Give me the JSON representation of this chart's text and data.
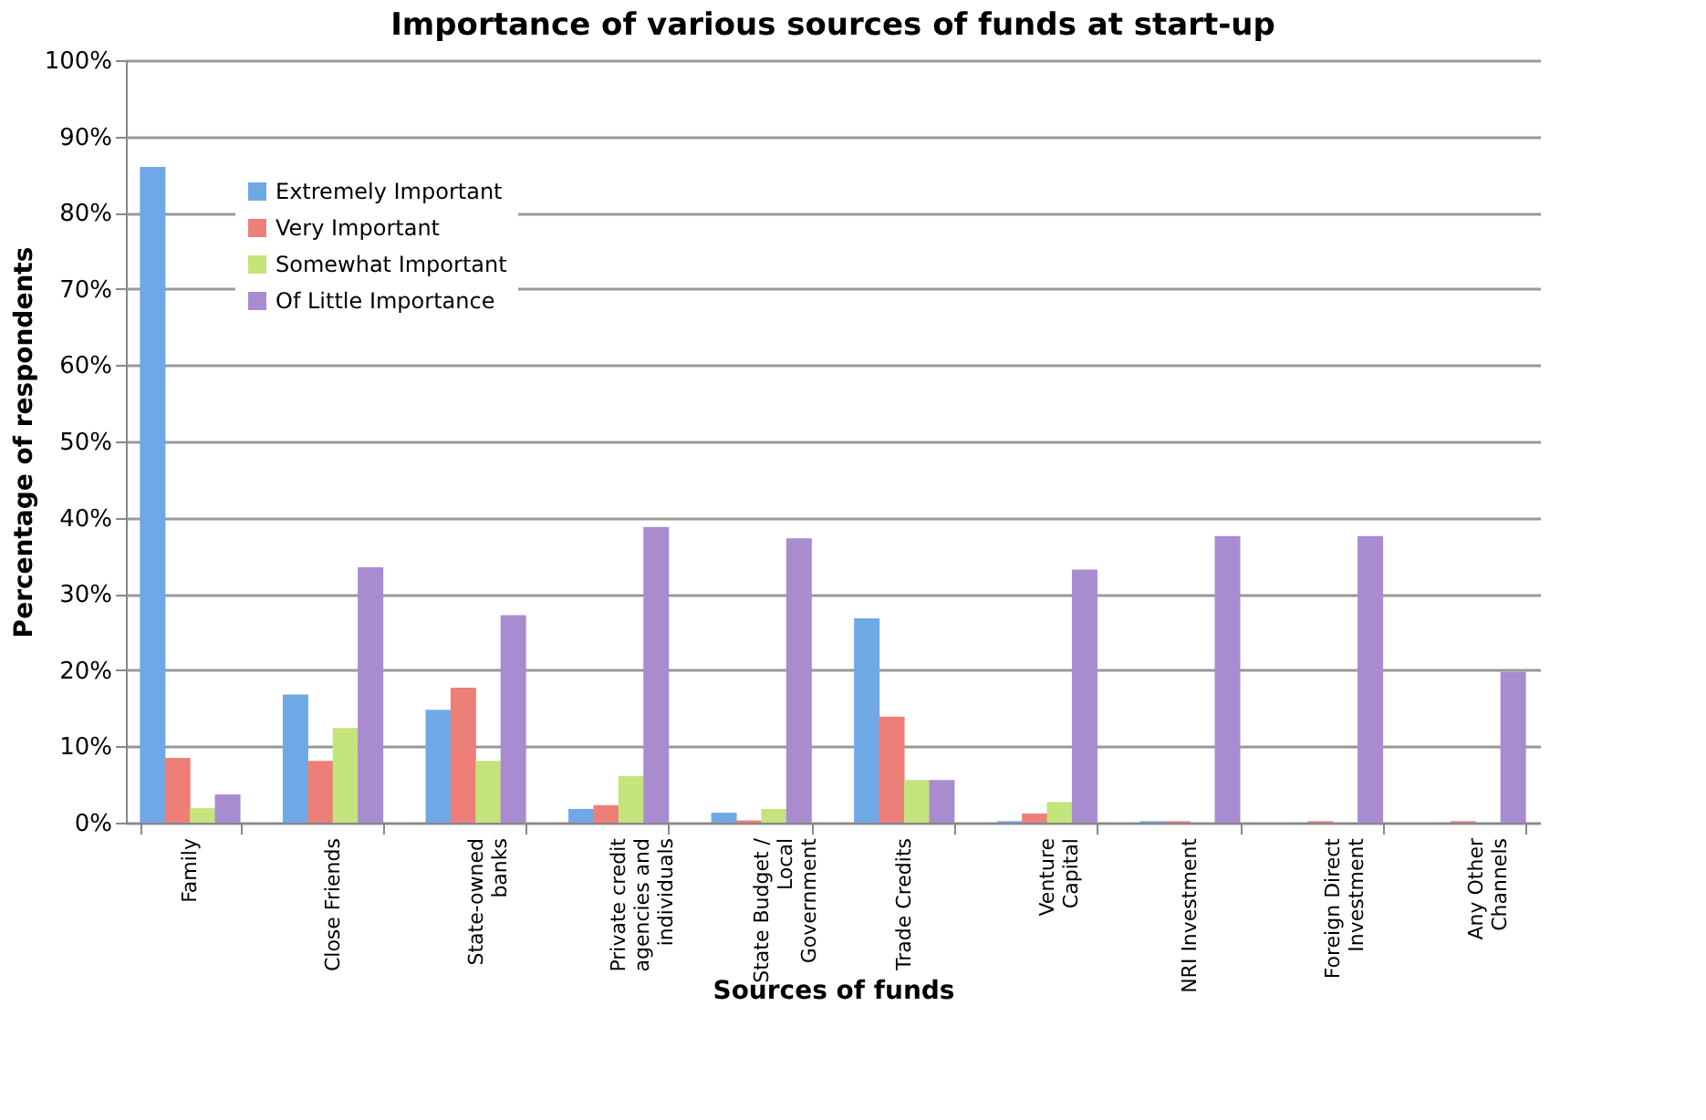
{
  "chart_data": {
    "type": "bar",
    "title": "Importance of various sources of funds at start-up",
    "xlabel": "Sources of funds",
    "ylabel": "Percentage of respondents",
    "categories": [
      "Family",
      "Close Friends",
      "State-owned banks",
      "Private credit agencies and individuals",
      "State Budget / Local Government",
      "Trade Credits",
      "Venture Capital",
      "NRI Investment",
      "Foreign Direct Investment",
      "Any Other Channels"
    ],
    "series": [
      {
        "name": "Extremely Important",
        "color": "#6fa8e6",
        "values": [
          86,
          16.8,
          14.8,
          1.8,
          1.3,
          26.8,
          0.2,
          0.2,
          0,
          0
        ]
      },
      {
        "name": "Very Important",
        "color": "#ee7f78",
        "values": [
          8.5,
          8.1,
          17.7,
          2.3,
          0.3,
          13.9,
          1.2,
          0.2,
          0.2,
          0.2
        ]
      },
      {
        "name": "Somewhat Important",
        "color": "#c4e47c",
        "values": [
          1.9,
          12.4,
          8.1,
          6.1,
          1.8,
          5.6,
          2.7,
          0,
          0,
          0
        ]
      },
      {
        "name": "Of Little Importance",
        "color": "#a98bcf",
        "values": [
          3.7,
          33.5,
          27.2,
          38.8,
          37.3,
          5.6,
          33.2,
          37.6,
          37.6,
          19.8
        ]
      }
    ],
    "ylim": [
      0,
      100
    ],
    "yticks": [
      {
        "value": 0,
        "label": "0%"
      },
      {
        "value": 10,
        "label": "10%"
      },
      {
        "value": 20,
        "label": "20%"
      },
      {
        "value": 30,
        "label": "30%"
      },
      {
        "value": 40,
        "label": "40%"
      },
      {
        "value": 50,
        "label": "50%"
      },
      {
        "value": 60,
        "label": "60%"
      },
      {
        "value": 70,
        "label": "70%"
      },
      {
        "value": 80,
        "label": "80%"
      },
      {
        "value": 90,
        "label": "90%"
      },
      {
        "value": 100,
        "label": "100%"
      }
    ],
    "grid": "y",
    "legend": "top left"
  }
}
